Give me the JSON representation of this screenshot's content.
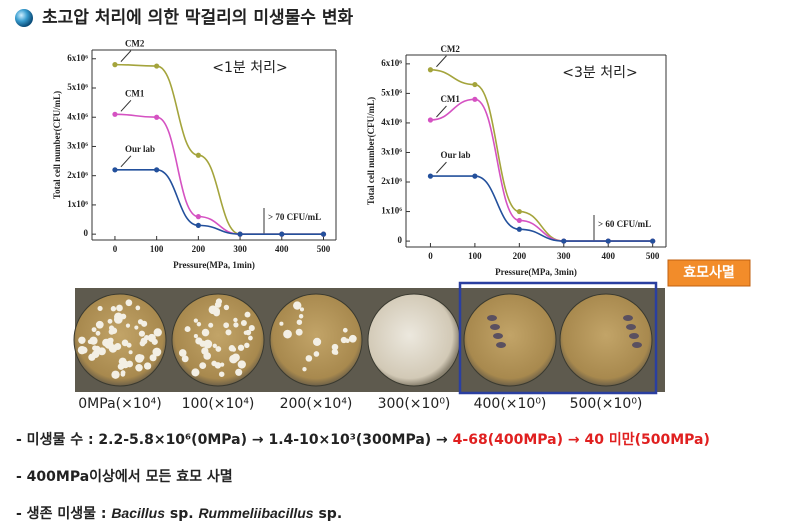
{
  "title": "초고압 처리에 의한 막걸리의 미생물수 변화",
  "chart_data": [
    {
      "type": "line",
      "title": "<1분 처리>",
      "x_label": "Pressure(MPa, 1min)",
      "y_label": "Total cell number(CFU/mL)",
      "annotation": "> 70 CFU/mL",
      "x": [
        0,
        100,
        200,
        300,
        400,
        500
      ],
      "xlim": [
        -55,
        530
      ],
      "xticks": [
        0,
        100,
        200,
        300,
        400,
        500
      ],
      "ylim": [
        -200000,
        6300000
      ],
      "yticks": [
        0,
        {
          "value": 1000000,
          "label": "1x10⁶"
        },
        {
          "value": 2000000,
          "label": "2x10⁶"
        },
        {
          "value": 3000000,
          "label": "3x10⁶"
        },
        {
          "value": 4000000,
          "label": "4x10⁶"
        },
        {
          "value": 5000000,
          "label": "5x10⁶"
        },
        {
          "value": 6000000,
          "label": "6x10⁶"
        }
      ],
      "series": [
        {
          "name": "CM2",
          "color": "#a4a43c",
          "values": [
            5800000,
            5750000,
            2700000,
            0,
            0,
            0
          ]
        },
        {
          "name": "CM1",
          "color": "#d552c2",
          "values": [
            4100000,
            4000000,
            600000,
            0,
            0,
            0
          ]
        },
        {
          "name": "Our lab",
          "color": "#23509c",
          "values": [
            2200000,
            2200000,
            300000,
            0,
            0,
            0
          ]
        }
      ]
    },
    {
      "type": "line",
      "title": "<3분 처리>",
      "x_label": "Pressure(MPa, 3min)",
      "y_label": "Total cell number(CFU/mL)",
      "annotation": "> 60 CFU/mL",
      "x": [
        0,
        100,
        200,
        300,
        400,
        500
      ],
      "xlim": [
        -55,
        530
      ],
      "xticks": [
        0,
        100,
        200,
        300,
        400,
        500
      ],
      "ylim": [
        -200000,
        6300000
      ],
      "yticks": [
        0,
        {
          "value": 1000000,
          "label": "1x10⁶"
        },
        {
          "value": 2000000,
          "label": "2x10⁶"
        },
        {
          "value": 3000000,
          "label": "3x10⁶"
        },
        {
          "value": 4000000,
          "label": "4x10⁶"
        },
        {
          "value": 5000000,
          "label": "5x10⁶"
        },
        {
          "value": 6000000,
          "label": "6x10⁶"
        }
      ],
      "series": [
        {
          "name": "CM2",
          "color": "#a4a43c",
          "values": [
            5800000,
            5300000,
            1000000,
            0,
            0,
            0
          ]
        },
        {
          "name": "CM1",
          "color": "#d552c2",
          "values": [
            4100000,
            4800000,
            700000,
            0,
            0,
            0
          ]
        },
        {
          "name": "Our lab",
          "color": "#23509c",
          "values": [
            2200000,
            2200000,
            400000,
            0,
            0,
            0
          ]
        }
      ]
    }
  ],
  "badge": "효모사멸",
  "photo_labels": [
    "0MPa(×10⁴)",
    "100(×10⁴)",
    "200(×10⁴)",
    "300(×10⁰)",
    "400(×10⁰)",
    "500(×10⁰)"
  ],
  "bullets": [
    [
      "- 미생물 수 : 2.2-5.8×10⁶(0MPa) → 1.4-10×10³(300MPa) → ",
      "4-68(400MPa) → 40 미만(500MPa)"
    ],
    [
      "- 400MPa이상에서 모든 효모 사멸"
    ],
    [
      "- 생존 미생물 : ",
      "Bacillus",
      " sp. ",
      "Rummeliibacillus",
      " sp."
    ]
  ]
}
